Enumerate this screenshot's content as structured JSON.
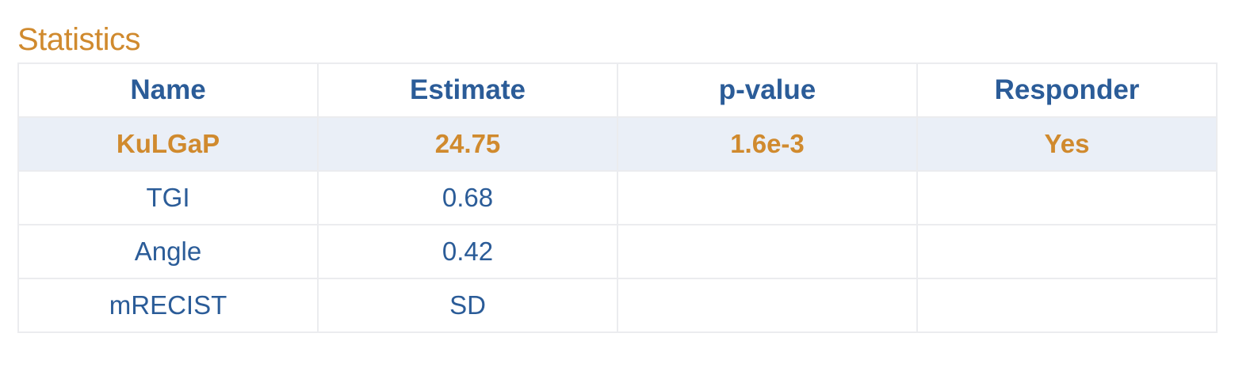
{
  "title": "Statistics",
  "table": {
    "headers": [
      "Name",
      "Estimate",
      "p-value",
      "Responder"
    ],
    "rows": [
      [
        "KuLGaP",
        "24.75",
        "1.6e-3",
        "Yes"
      ],
      [
        "TGI",
        "0.68",
        "",
        ""
      ],
      [
        "Angle",
        "0.42",
        "",
        ""
      ],
      [
        "mRECIST",
        "SD",
        "",
        ""
      ]
    ],
    "highlighted_row": 0
  },
  "colors": {
    "accent_orange": "#d08a2e",
    "text_blue": "#2b5c98",
    "highlight_bg": "#eaeff7",
    "border": "#ebecef"
  }
}
